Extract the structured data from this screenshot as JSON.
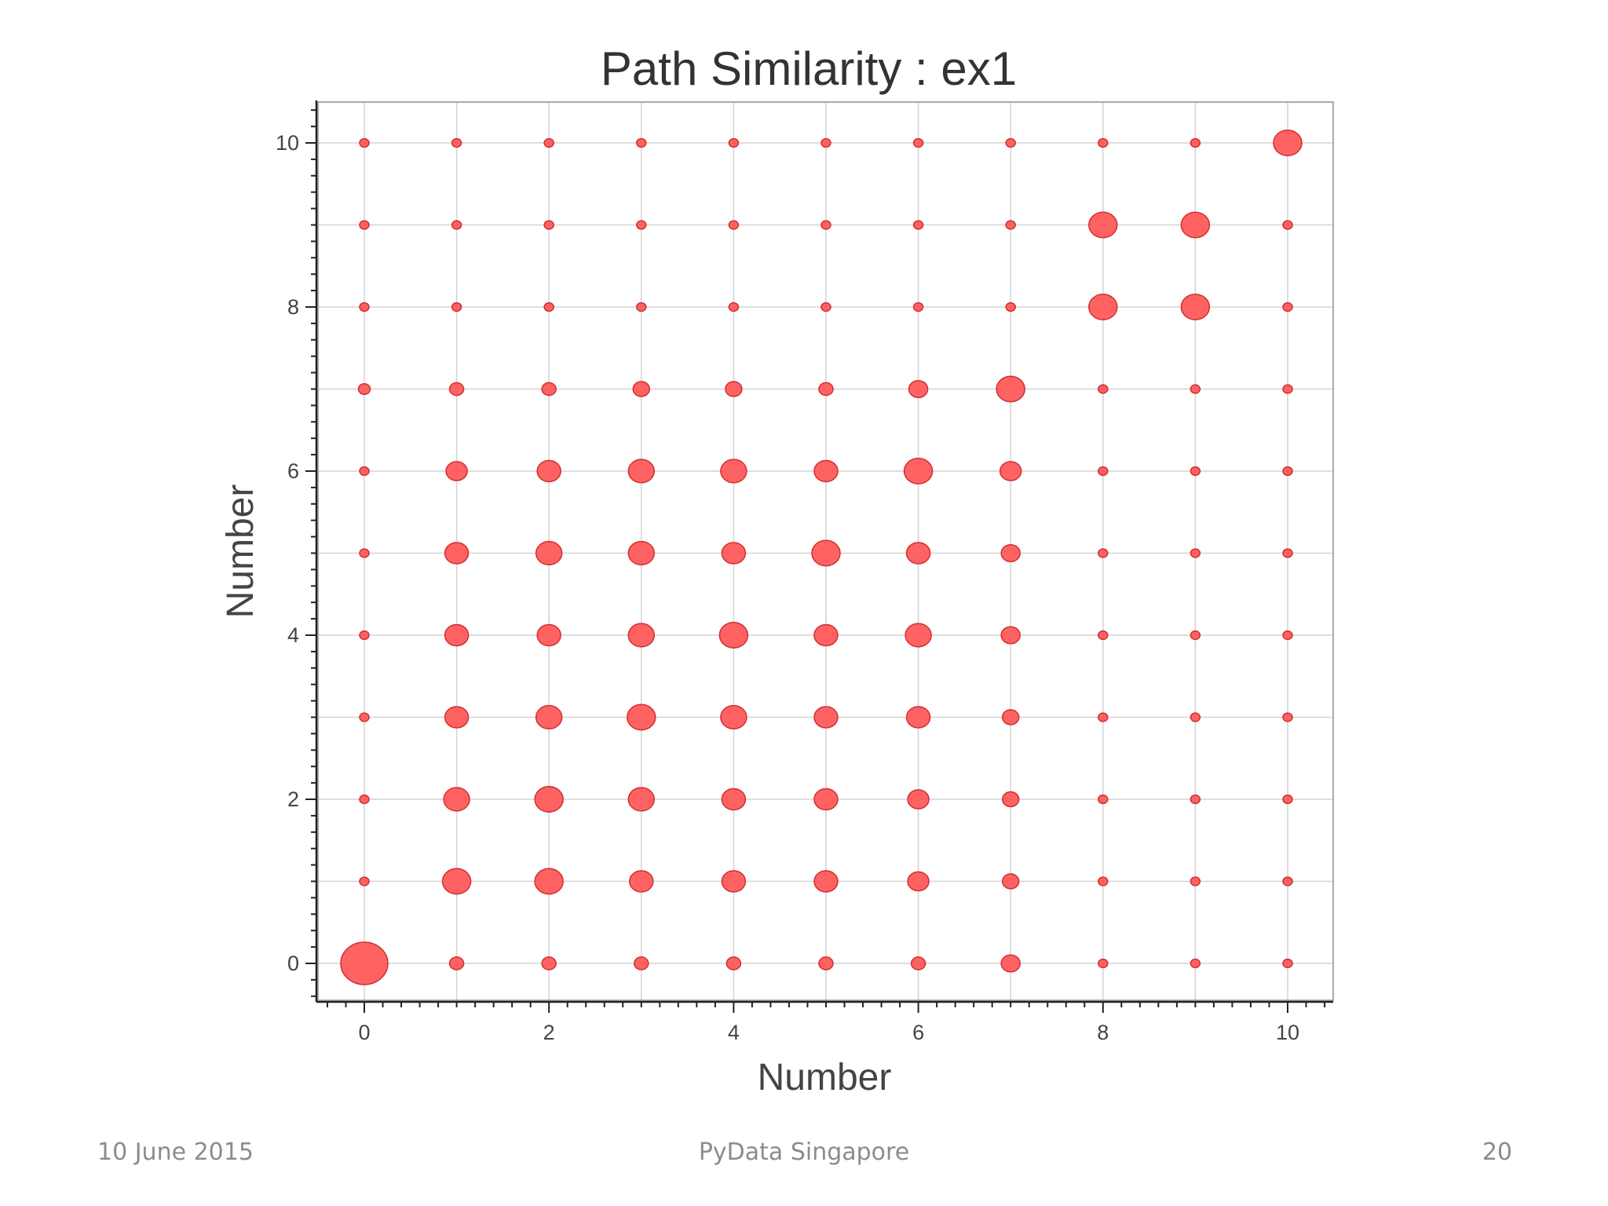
{
  "chart_data": {
    "type": "scatter",
    "title": "Path Similarity : ex1",
    "xlabel": "Number",
    "ylabel": "Number",
    "xlim": [
      -0.5,
      10.5
    ],
    "ylim": [
      -0.5,
      10.5
    ],
    "x_ticks": [
      0,
      2,
      4,
      6,
      8,
      10
    ],
    "y_ticks": [
      0,
      2,
      4,
      6,
      8,
      10
    ],
    "grid": true,
    "marker_color": "#ff5a5a",
    "marker_edge_color": "#d03030",
    "size_note": "bubble size encodes path similarity",
    "size_matrix": [
      [
        1.0,
        0.3,
        0.3,
        0.3,
        0.3,
        0.3,
        0.3,
        0.4,
        0.2,
        0.2,
        0.1
      ],
      [
        0.2,
        0.6,
        0.6,
        0.5,
        0.5,
        0.5,
        0.45,
        0.35,
        0.1,
        0.1,
        0.1
      ],
      [
        0.2,
        0.55,
        0.6,
        0.55,
        0.5,
        0.5,
        0.45,
        0.35,
        0.1,
        0.1,
        0.1
      ],
      [
        0.2,
        0.5,
        0.55,
        0.6,
        0.55,
        0.5,
        0.5,
        0.35,
        0.1,
        0.1,
        0.1
      ],
      [
        0.2,
        0.5,
        0.5,
        0.55,
        0.6,
        0.5,
        0.55,
        0.4,
        0.1,
        0.1,
        0.1
      ],
      [
        0.2,
        0.5,
        0.55,
        0.55,
        0.5,
        0.6,
        0.5,
        0.4,
        0.1,
        0.1,
        0.1
      ],
      [
        0.2,
        0.45,
        0.5,
        0.55,
        0.55,
        0.5,
        0.6,
        0.45,
        0.1,
        0.1,
        0.1
      ],
      [
        0.25,
        0.3,
        0.3,
        0.35,
        0.35,
        0.3,
        0.4,
        0.6,
        0.1,
        0.1,
        0.1
      ],
      [
        0.15,
        0.1,
        0.1,
        0.1,
        0.1,
        0.1,
        0.1,
        0.12,
        0.6,
        0.6,
        0.1
      ],
      [
        0.15,
        0.1,
        0.1,
        0.1,
        0.1,
        0.1,
        0.1,
        0.12,
        0.6,
        0.6,
        0.1
      ],
      [
        0.1,
        0.1,
        0.1,
        0.1,
        0.1,
        0.1,
        0.1,
        0.1,
        0.1,
        0.1,
        0.6
      ]
    ]
  },
  "footer": {
    "date": "10 June 2015",
    "event": "PyData Singapore",
    "page": "20"
  }
}
